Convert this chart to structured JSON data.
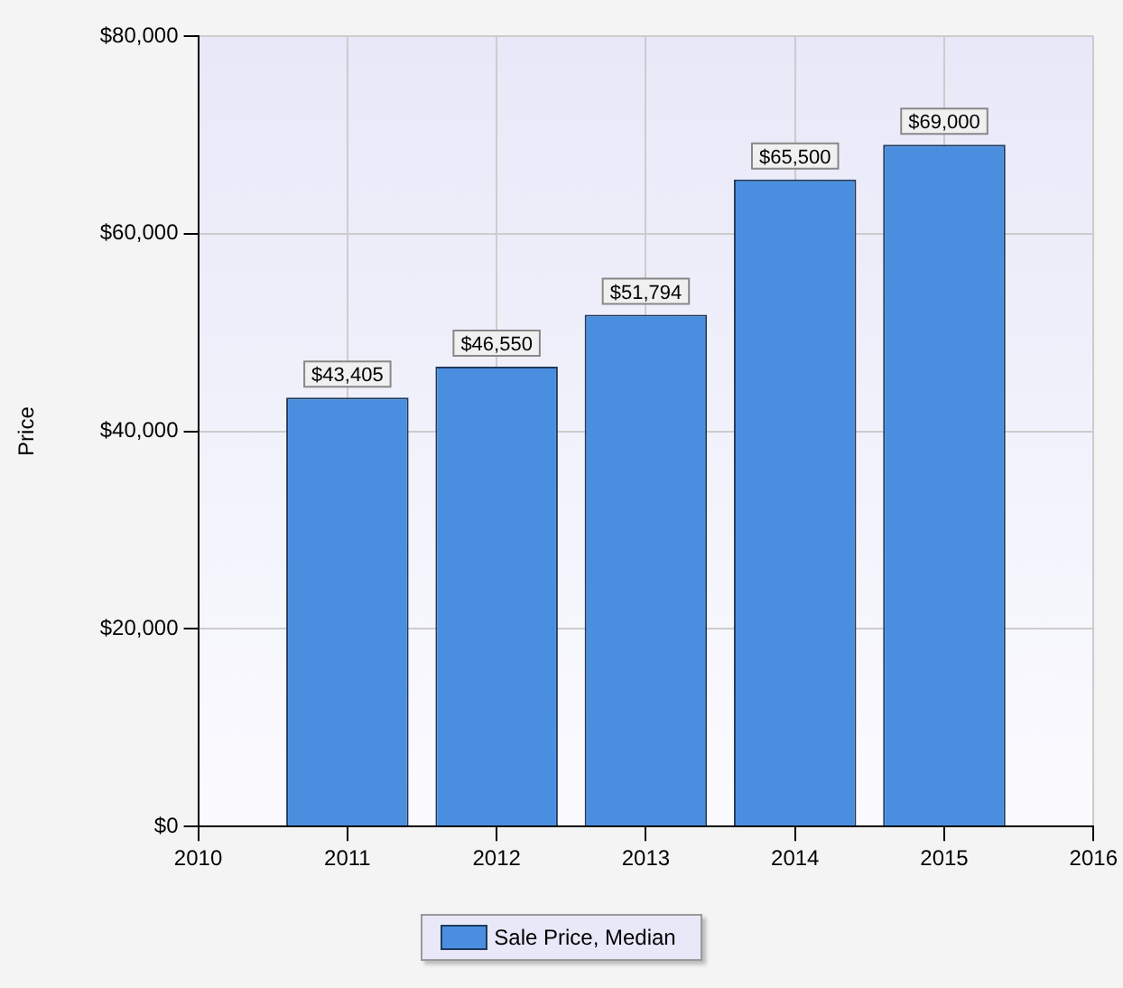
{
  "chart_data": {
    "type": "bar",
    "ylabel": "Price",
    "x": [
      2011,
      2012,
      2013,
      2014,
      2015
    ],
    "series": [
      {
        "name": "Sale Price, Median",
        "color": "#4a8fdf",
        "values": [
          43405,
          46550,
          51794,
          65500,
          69000
        ],
        "value_labels": [
          "$43,405",
          "$46,550",
          "$51,794",
          "$65,500",
          "$69,000"
        ]
      }
    ],
    "xlim": [
      2010,
      2016
    ],
    "xticks": [
      2010,
      2011,
      2012,
      2013,
      2014,
      2015,
      2016
    ],
    "ylim": [
      0,
      80000
    ],
    "yticks": [
      {
        "value": 0,
        "label": "$0"
      },
      {
        "value": 20000,
        "label": "$20,000"
      },
      {
        "value": 40000,
        "label": "$40,000"
      },
      {
        "value": 60000,
        "label": "$60,000"
      },
      {
        "value": 80000,
        "label": "$80,000"
      }
    ],
    "grid": true,
    "legend": "bottom"
  }
}
